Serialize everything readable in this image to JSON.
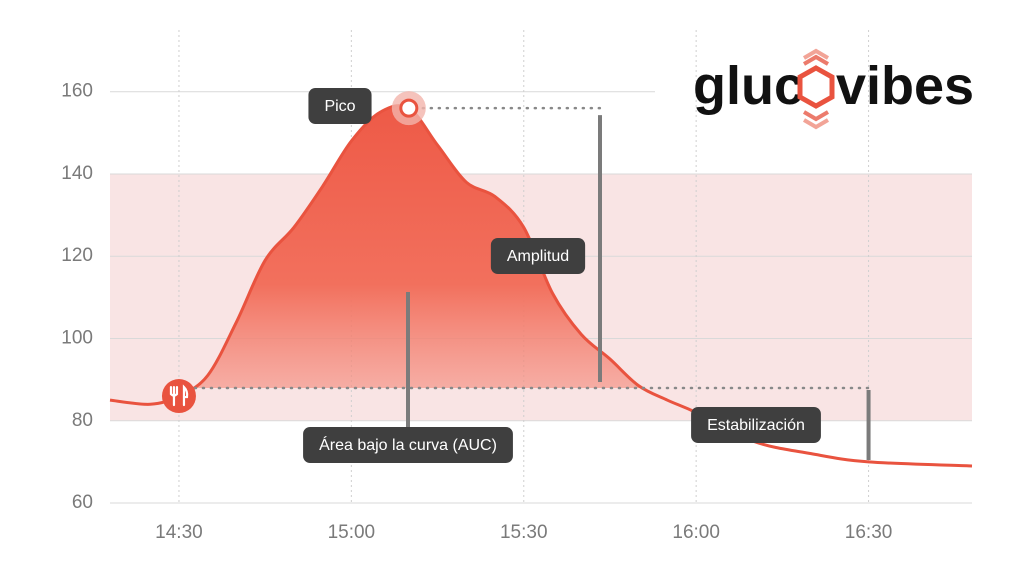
{
  "chart_data": {
    "type": "line",
    "logo": {
      "left": "gluc",
      "right": "vibes"
    },
    "x": [
      "14:18",
      "14:25",
      "14:30",
      "14:35",
      "14:40",
      "14:45",
      "14:50",
      "14:55",
      "15:00",
      "15:05",
      "15:10",
      "15:15",
      "15:20",
      "15:25",
      "15:30",
      "15:35",
      "15:40",
      "15:45",
      "15:50",
      "15:55",
      "16:00",
      "16:10",
      "16:20",
      "16:30",
      "16:48"
    ],
    "series": [
      {
        "color": "#e9533f",
        "values": [
          85,
          84,
          86,
          91,
          104,
          119,
          127,
          137,
          148,
          155,
          156,
          147,
          138,
          134.5,
          127,
          111,
          101,
          95,
          88.5,
          85,
          82,
          75,
          72,
          70,
          69
        ]
      }
    ],
    "xlim": [
      "14:18",
      "16:48"
    ],
    "xticks": [
      "14:30",
      "15:00",
      "15:30",
      "16:00",
      "16:30"
    ],
    "ylim": [
      60,
      175
    ],
    "yticks": [
      60,
      80,
      100,
      120,
      140,
      160
    ],
    "target_range": [
      80,
      140
    ],
    "target_color": "#f9e4e4",
    "grid": true,
    "annotations": {
      "peak": "Pico",
      "amplitude": "Amplitud",
      "auc": "Área bajo la curva (AUC)",
      "stabilization": "Estabilización"
    }
  }
}
